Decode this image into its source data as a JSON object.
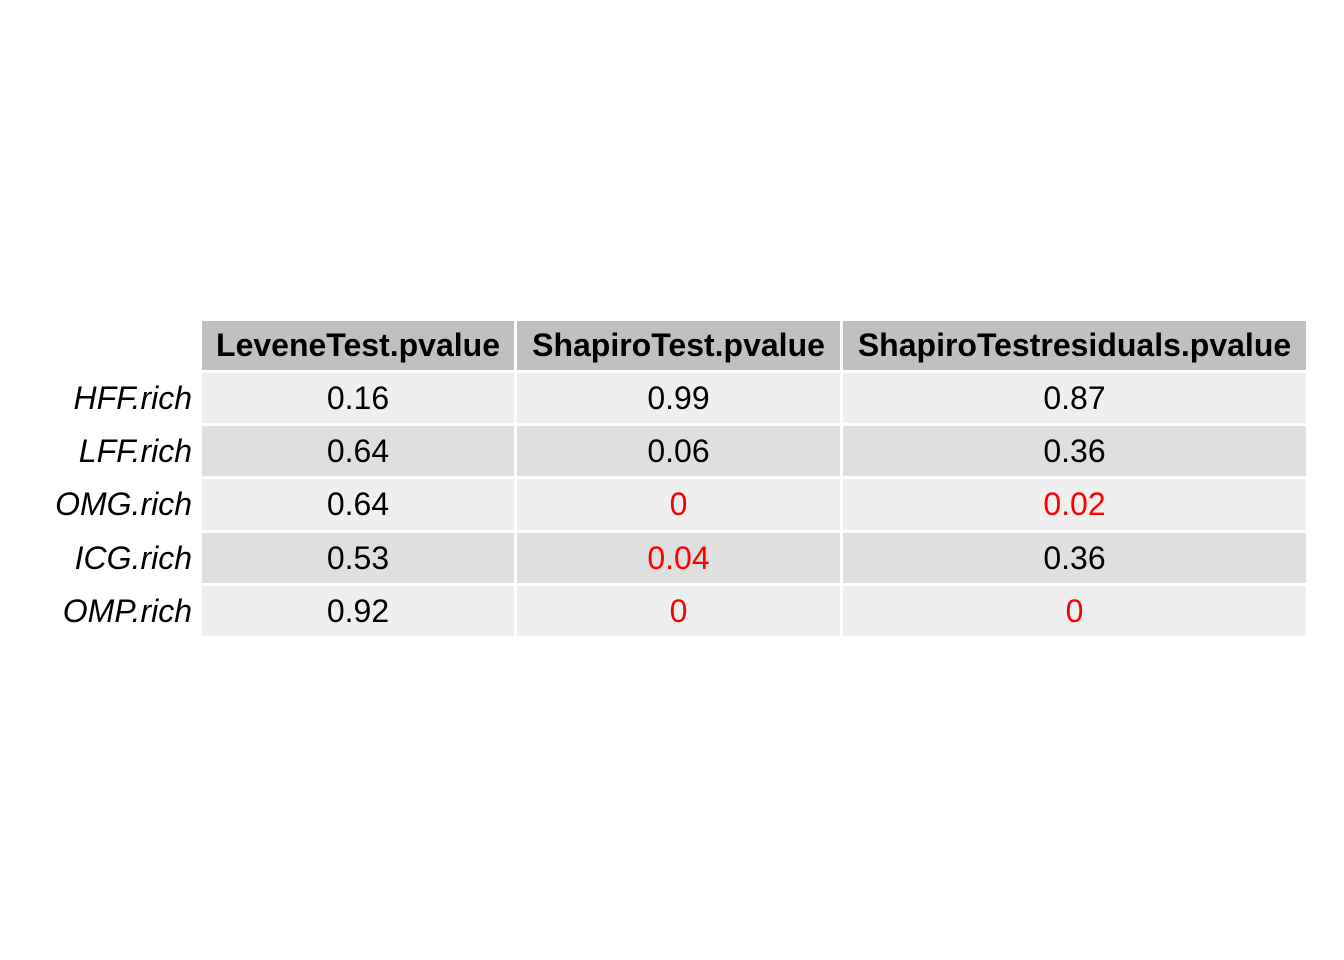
{
  "chart_data": {
    "type": "table",
    "columns": [
      "LeveneTest.pvalue",
      "ShapiroTest.pvalue",
      "ShapiroTestresiduals.pvalue"
    ],
    "rows": [
      {
        "label": "HFF.rich",
        "values": [
          "0.16",
          "0.99",
          "0.87"
        ],
        "highlight": [
          false,
          false,
          false
        ]
      },
      {
        "label": "LFF.rich",
        "values": [
          "0.64",
          "0.06",
          "0.36"
        ],
        "highlight": [
          false,
          false,
          false
        ]
      },
      {
        "label": "OMG.rich",
        "values": [
          "0.64",
          "0",
          "0.02"
        ],
        "highlight": [
          false,
          true,
          true
        ]
      },
      {
        "label": "ICG.rich",
        "values": [
          "0.53",
          "0.04",
          "0.36"
        ],
        "highlight": [
          false,
          true,
          false
        ]
      },
      {
        "label": "OMP.rich",
        "values": [
          "0.92",
          "0",
          "0"
        ],
        "highlight": [
          false,
          true,
          true
        ]
      }
    ],
    "colors": {
      "header_bg": "#c0c0c0",
      "row_bg_odd": "#efefef",
      "row_bg_even": "#dfdfdf",
      "text": "#000000",
      "highlight_text": "#ff0000",
      "grid_line": "#ffffff"
    }
  }
}
